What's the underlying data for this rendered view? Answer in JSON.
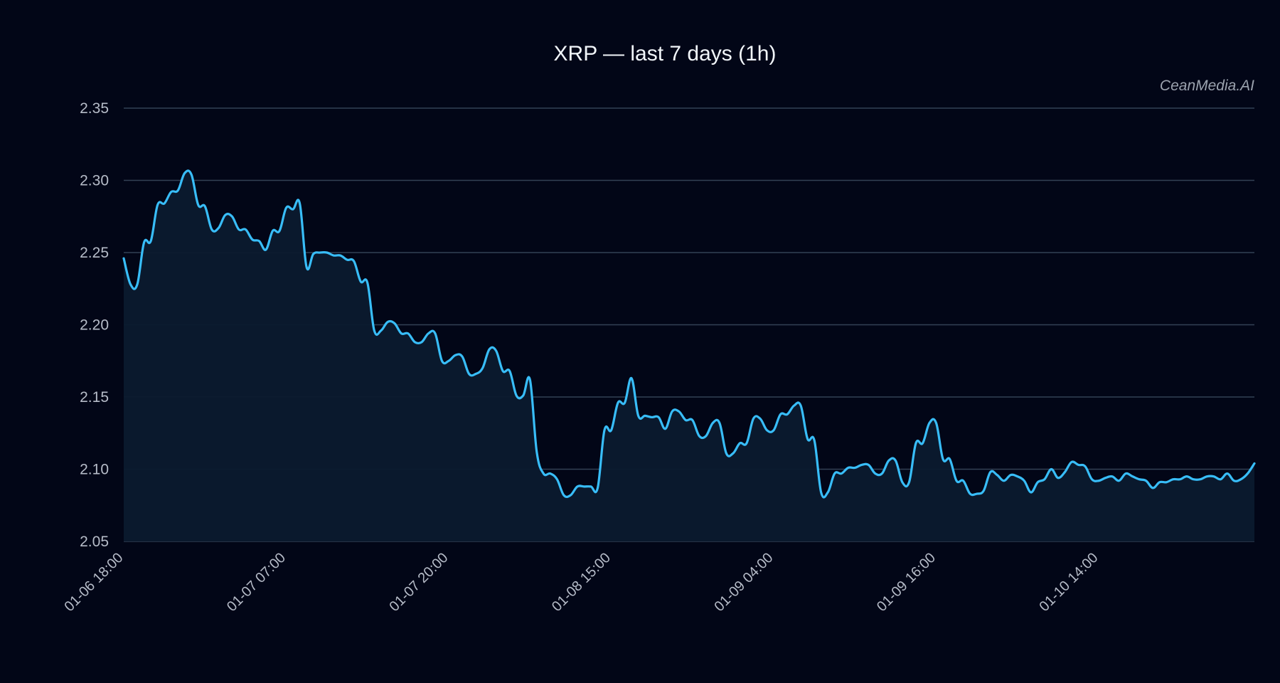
{
  "chart_data": {
    "type": "area",
    "title": "XRP — last 7 days (1h)",
    "watermark": "CeanMedia.AI",
    "xlabel": "",
    "ylabel": "",
    "ylim": [
      2.05,
      2.35
    ],
    "y_ticks": [
      "2.05",
      "2.10",
      "2.15",
      "2.20",
      "2.25",
      "2.30",
      "2.35"
    ],
    "x_tick_labels": [
      "01-06 18:00",
      "01-07 07:00",
      "01-07 20:00",
      "01-08 15:00",
      "01-09 04:00",
      "01-09 16:00",
      "01-10 14:00"
    ],
    "grid": true,
    "colors": {
      "background": "#020617",
      "line": "#38bdf8",
      "fill": "#0b1a2e",
      "grid": "#334155"
    },
    "series": [
      {
        "values": [
          2.246,
          2.228,
          2.228,
          2.257,
          2.258,
          2.283,
          2.284,
          2.292,
          2.293,
          2.305,
          2.304,
          2.283,
          2.282,
          2.266,
          2.267,
          2.276,
          2.275,
          2.266,
          2.266,
          2.259,
          2.258,
          2.252,
          2.265,
          2.265,
          2.281,
          2.28,
          2.284,
          2.24,
          2.249,
          2.25,
          2.25,
          2.248,
          2.248,
          2.245,
          2.244,
          2.23,
          2.229,
          2.196,
          2.196,
          2.202,
          2.201,
          2.194,
          2.194,
          2.188,
          2.188,
          2.194,
          2.194,
          2.175,
          2.175,
          2.179,
          2.178,
          2.166,
          2.166,
          2.17,
          2.183,
          2.182,
          2.168,
          2.168,
          2.151,
          2.151,
          2.162,
          2.112,
          2.097,
          2.097,
          2.093,
          2.082,
          2.082,
          2.088,
          2.088,
          2.088,
          2.087,
          2.127,
          2.127,
          2.146,
          2.146,
          2.163,
          2.137,
          2.137,
          2.136,
          2.136,
          2.128,
          2.14,
          2.14,
          2.134,
          2.134,
          2.123,
          2.123,
          2.132,
          2.132,
          2.111,
          2.111,
          2.118,
          2.118,
          2.135,
          2.135,
          2.127,
          2.127,
          2.138,
          2.138,
          2.144,
          2.144,
          2.121,
          2.12,
          2.084,
          2.084,
          2.097,
          2.097,
          2.101,
          2.101,
          2.103,
          2.103,
          2.097,
          2.097,
          2.106,
          2.106,
          2.091,
          2.091,
          2.118,
          2.118,
          2.132,
          2.132,
          2.107,
          2.107,
          2.092,
          2.092,
          2.083,
          2.083,
          2.085,
          2.098,
          2.096,
          2.092,
          2.096,
          2.095,
          2.092,
          2.084,
          2.091,
          2.093,
          2.1,
          2.094,
          2.098,
          2.105,
          2.103,
          2.102,
          2.093,
          2.092,
          2.094,
          2.095,
          2.092,
          2.097,
          2.095,
          2.093,
          2.092,
          2.087,
          2.091,
          2.091,
          2.093,
          2.093,
          2.095,
          2.093,
          2.093,
          2.095,
          2.095,
          2.093,
          2.097,
          2.092,
          2.093,
          2.097,
          2.104
        ]
      }
    ]
  }
}
